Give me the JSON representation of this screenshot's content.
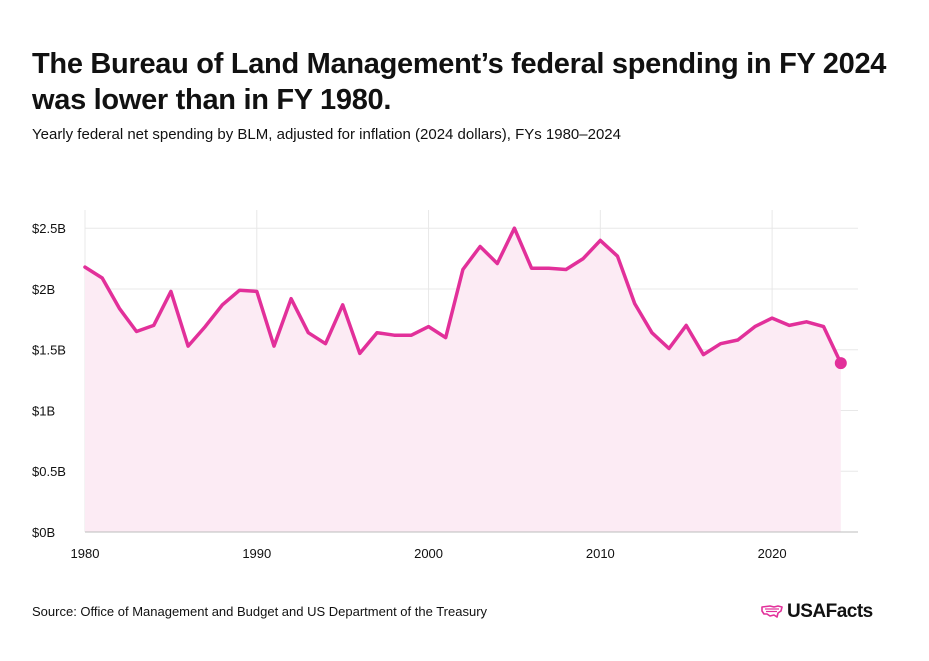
{
  "header": {
    "title": "The Bureau of Land Management’s federal spending in FY 2024 was lower than in FY 1980.",
    "subtitle": "Yearly federal net spending by BLM, adjusted for inflation (2024 dollars), FYs 1980–2024"
  },
  "footer": {
    "source": "Source: Office of Management and Budget and US Department of the Treasury",
    "logo_text": "USAFacts"
  },
  "colors": {
    "line": "#e2309a",
    "area": "#fcebf4",
    "grid": "#e8e8e8",
    "text": "#111111"
  },
  "chart_data": {
    "type": "area",
    "title": "The Bureau of Land Management’s federal spending in FY 2024 was lower than in FY 1980.",
    "subtitle": "Yearly federal net spending by BLM, adjusted for inflation (2024 dollars), FYs 1980–2024",
    "xlabel": "",
    "ylabel": "",
    "xlim": [
      1980,
      2025
    ],
    "ylim": [
      0,
      2.65
    ],
    "x_ticks": [
      1980,
      1990,
      2000,
      2010,
      2020
    ],
    "x_tick_labels": [
      "1980",
      "1990",
      "2000",
      "2010",
      "2020"
    ],
    "y_ticks": [
      0,
      0.5,
      1,
      1.5,
      2,
      2.5
    ],
    "y_tick_labels": [
      "$0B",
      "$0.5B",
      "$1B",
      "$1.5B",
      "$2B",
      "$2.5B"
    ],
    "grid": true,
    "legend": "none",
    "highlight_last_point": true,
    "x": [
      1980,
      1981,
      1982,
      1983,
      1984,
      1985,
      1986,
      1987,
      1988,
      1989,
      1990,
      1991,
      1992,
      1993,
      1994,
      1995,
      1996,
      1997,
      1998,
      1999,
      2000,
      2001,
      2002,
      2003,
      2004,
      2005,
      2006,
      2007,
      2008,
      2009,
      2010,
      2011,
      2012,
      2013,
      2014,
      2015,
      2016,
      2017,
      2018,
      2019,
      2020,
      2021,
      2022,
      2023,
      2024
    ],
    "series": [
      {
        "values": [
          2.18,
          2.09,
          1.84,
          1.65,
          1.7,
          1.98,
          1.53,
          1.69,
          1.87,
          1.99,
          1.98,
          1.53,
          1.92,
          1.64,
          1.55,
          1.87,
          1.47,
          1.64,
          1.62,
          1.62,
          1.69,
          1.6,
          2.16,
          2.35,
          2.21,
          2.5,
          2.17,
          2.17,
          2.16,
          2.25,
          2.4,
          2.27,
          1.88,
          1.64,
          1.51,
          1.7,
          1.46,
          1.55,
          1.58,
          1.69,
          1.76,
          1.7,
          1.73,
          1.69,
          1.39
        ]
      }
    ]
  }
}
